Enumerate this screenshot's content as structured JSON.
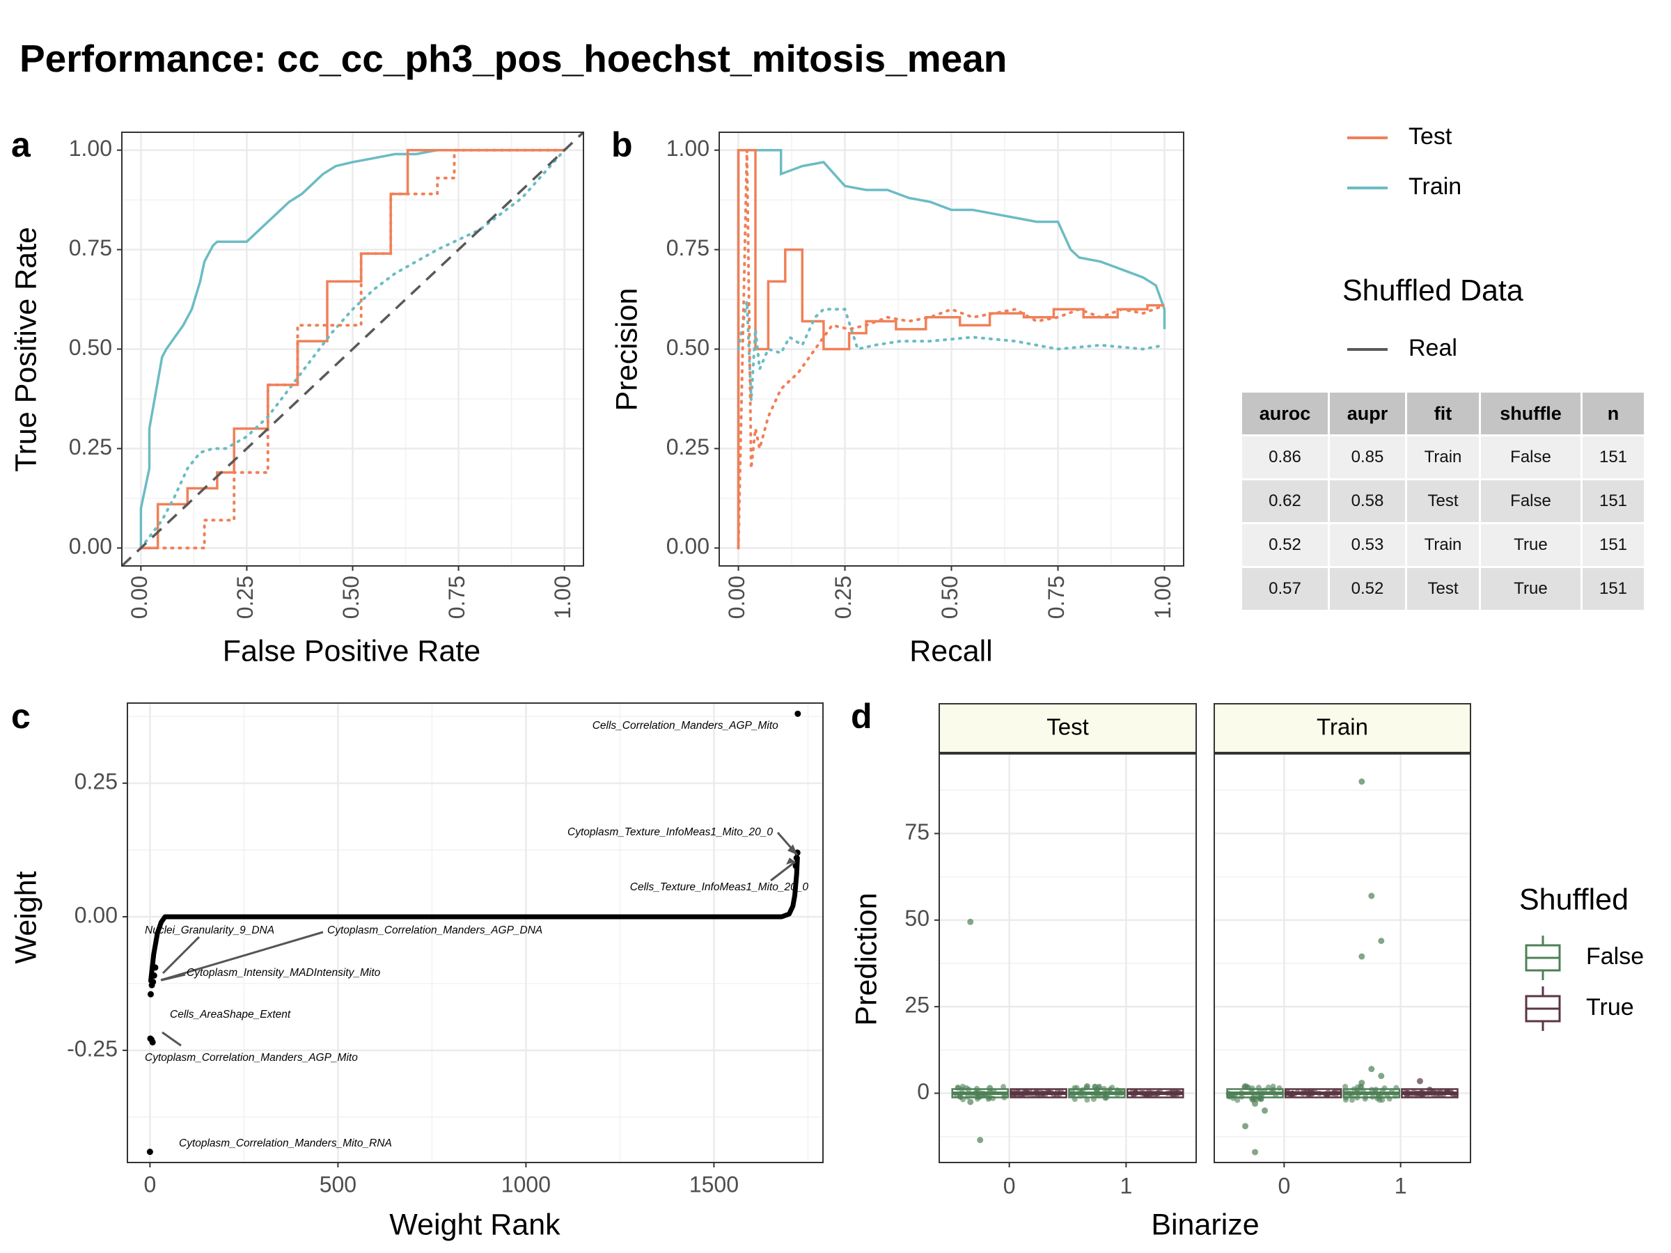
{
  "figure": {
    "title": "Performance: cc_cc_ph3_pos_hoechst_mitosis_mean",
    "panel_labels": [
      "a",
      "b",
      "c",
      "d"
    ]
  },
  "colors": {
    "test": "#f08058",
    "train": "#6bbcc4",
    "real": "#595959",
    "shuffled_false": "#4e8056",
    "shuffled_true": "#5a3643",
    "strip_fill": "#fafbea"
  },
  "legend_a": {
    "series_title": "",
    "items": [
      "Test",
      "Train"
    ],
    "shuffle_title": "Shuffled Data",
    "shuffle_items": [
      "Real"
    ]
  },
  "metrics_table": {
    "headers": [
      "auroc",
      "aupr",
      "fit",
      "shuffle",
      "n"
    ],
    "rows": [
      [
        "0.86",
        "0.85",
        "Train",
        "False",
        "151"
      ],
      [
        "0.62",
        "0.58",
        "Test",
        "False",
        "151"
      ],
      [
        "0.52",
        "0.53",
        "Train",
        "True",
        "151"
      ],
      [
        "0.57",
        "0.52",
        "Test",
        "True",
        "151"
      ]
    ]
  },
  "legend_d": {
    "title": "Shuffled",
    "items": [
      "False",
      "True"
    ]
  },
  "chart_data": [
    {
      "panel": "a",
      "type": "line",
      "xlabel": "False Positive Rate",
      "ylabel": "True Positive Rate",
      "xlim": [
        0,
        1
      ],
      "ylim": [
        0,
        1
      ],
      "xticks": [
        "0.00",
        "0.25",
        "0.50",
        "0.75",
        "1.00"
      ],
      "yticks": [
        "0.00",
        "0.25",
        "0.50",
        "0.75",
        "1.00"
      ],
      "series": [
        {
          "name": "Train",
          "shuffled": false,
          "x": [
            0,
            0,
            0.02,
            0.02,
            0.04,
            0.05,
            0.06,
            0.08,
            0.1,
            0.12,
            0.14,
            0.15,
            0.17,
            0.18,
            0.25,
            0.27,
            0.3,
            0.32,
            0.35,
            0.38,
            0.4,
            0.43,
            0.46,
            0.5,
            0.55,
            0.6,
            0.65,
            0.7,
            0.8,
            0.9,
            1.0
          ],
          "y": [
            0,
            0.1,
            0.2,
            0.3,
            0.42,
            0.48,
            0.5,
            0.53,
            0.56,
            0.6,
            0.67,
            0.72,
            0.76,
            0.77,
            0.77,
            0.79,
            0.82,
            0.84,
            0.87,
            0.89,
            0.91,
            0.94,
            0.96,
            0.97,
            0.98,
            0.99,
            0.99,
            1.0,
            1.0,
            1.0,
            1.0
          ]
        },
        {
          "name": "Test",
          "shuffled": false,
          "x": [
            0,
            0.04,
            0.04,
            0.11,
            0.11,
            0.18,
            0.18,
            0.22,
            0.22,
            0.3,
            0.3,
            0.37,
            0.37,
            0.44,
            0.44,
            0.52,
            0.52,
            0.59,
            0.59,
            0.63,
            0.63,
            1.0
          ],
          "y": [
            0,
            0,
            0.11,
            0.11,
            0.15,
            0.15,
            0.19,
            0.19,
            0.3,
            0.3,
            0.41,
            0.41,
            0.52,
            0.52,
            0.67,
            0.67,
            0.74,
            0.74,
            0.89,
            0.89,
            1.0,
            1.0
          ]
        },
        {
          "name": "Train",
          "shuffled": true,
          "x": [
            0,
            0.05,
            0.08,
            0.11,
            0.14,
            0.17,
            0.2,
            0.25,
            0.3,
            0.35,
            0.4,
            0.45,
            0.5,
            0.55,
            0.6,
            0.7,
            0.8,
            0.9,
            1.0
          ],
          "y": [
            0,
            0.07,
            0.13,
            0.2,
            0.24,
            0.25,
            0.25,
            0.28,
            0.33,
            0.4,
            0.47,
            0.54,
            0.6,
            0.65,
            0.69,
            0.75,
            0.8,
            0.88,
            1.0
          ]
        },
        {
          "name": "Test",
          "shuffled": true,
          "x": [
            0,
            0.15,
            0.15,
            0.22,
            0.22,
            0.3,
            0.3,
            0.37,
            0.37,
            0.44,
            0.44,
            0.52,
            0.52,
            0.59,
            0.59,
            0.7,
            0.7,
            0.74,
            0.74,
            1.0
          ],
          "y": [
            0,
            0,
            0.07,
            0.07,
            0.19,
            0.19,
            0.41,
            0.41,
            0.56,
            0.56,
            0.56,
            0.56,
            0.74,
            0.74,
            0.89,
            0.89,
            0.93,
            0.93,
            1.0,
            1.0
          ]
        }
      ],
      "reference_line": {
        "x": [
          0,
          1
        ],
        "y": [
          0,
          1
        ],
        "style": "dashed"
      }
    },
    {
      "panel": "b",
      "type": "line",
      "xlabel": "Recall",
      "ylabel": "Precision",
      "xlim": [
        0,
        1
      ],
      "ylim": [
        0,
        1
      ],
      "xticks": [
        "0.00",
        "0.25",
        "0.50",
        "0.75",
        "1.00"
      ],
      "yticks": [
        "0.00",
        "0.25",
        "0.50",
        "0.75",
        "1.00"
      ],
      "series": [
        {
          "name": "Train",
          "shuffled": false,
          "x": [
            0,
            0,
            0.1,
            0.1,
            0.15,
            0.2,
            0.25,
            0.3,
            0.35,
            0.4,
            0.45,
            0.5,
            0.55,
            0.6,
            0.65,
            0.7,
            0.75,
            0.78,
            0.8,
            0.85,
            0.9,
            0.95,
            0.98,
            1.0,
            1.0
          ],
          "y": [
            0,
            1.0,
            1.0,
            0.94,
            0.96,
            0.97,
            0.91,
            0.9,
            0.9,
            0.88,
            0.87,
            0.85,
            0.85,
            0.84,
            0.83,
            0.82,
            0.82,
            0.75,
            0.73,
            0.72,
            0.7,
            0.68,
            0.66,
            0.6,
            0.55
          ]
        },
        {
          "name": "Test",
          "shuffled": false,
          "x": [
            0,
            0,
            0.04,
            0.04,
            0.07,
            0.07,
            0.11,
            0.11,
            0.15,
            0.15,
            0.2,
            0.2,
            0.26,
            0.26,
            0.3,
            0.3,
            0.37,
            0.37,
            0.44,
            0.44,
            0.52,
            0.52,
            0.59,
            0.59,
            0.67,
            0.67,
            0.74,
            0.74,
            0.81,
            0.81,
            0.89,
            0.89,
            0.96,
            0.96,
            1.0
          ],
          "y": [
            0,
            1.0,
            1.0,
            0.5,
            0.5,
            0.67,
            0.67,
            0.75,
            0.75,
            0.57,
            0.57,
            0.5,
            0.5,
            0.54,
            0.54,
            0.57,
            0.57,
            0.55,
            0.55,
            0.58,
            0.58,
            0.56,
            0.56,
            0.59,
            0.59,
            0.58,
            0.58,
            0.6,
            0.6,
            0.58,
            0.58,
            0.6,
            0.6,
            0.61,
            0.61
          ]
        },
        {
          "name": "Train",
          "shuffled": true,
          "x": [
            0,
            0.02,
            0.03,
            0.04,
            0.05,
            0.07,
            0.1,
            0.12,
            0.15,
            0.18,
            0.2,
            0.25,
            0.28,
            0.32,
            0.38,
            0.45,
            0.55,
            0.65,
            0.75,
            0.85,
            0.95,
            1.0
          ],
          "y": [
            0.5,
            0.62,
            0.37,
            0.55,
            0.45,
            0.5,
            0.49,
            0.53,
            0.51,
            0.58,
            0.6,
            0.6,
            0.5,
            0.51,
            0.52,
            0.52,
            0.53,
            0.52,
            0.5,
            0.51,
            0.5,
            0.51
          ]
        },
        {
          "name": "Test",
          "shuffled": true,
          "x": [
            0,
            0.02,
            0.03,
            0.04,
            0.05,
            0.07,
            0.1,
            0.14,
            0.18,
            0.22,
            0.26,
            0.3,
            0.35,
            0.4,
            0.45,
            0.5,
            0.55,
            0.6,
            0.65,
            0.7,
            0.75,
            0.8,
            0.85,
            0.9,
            0.95,
            1.0
          ],
          "y": [
            0,
            1.0,
            0.2,
            0.3,
            0.25,
            0.33,
            0.4,
            0.44,
            0.5,
            0.56,
            0.55,
            0.56,
            0.58,
            0.57,
            0.58,
            0.6,
            0.58,
            0.59,
            0.6,
            0.57,
            0.58,
            0.6,
            0.58,
            0.6,
            0.59,
            0.61
          ]
        }
      ]
    },
    {
      "panel": "c",
      "type": "scatter",
      "xlabel": "Weight Rank",
      "ylabel": "Weight",
      "xlim": [
        -60,
        1790
      ],
      "ylim": [
        -0.46,
        0.4
      ],
      "xticks": [
        "0",
        "500",
        "1000",
        "1500"
      ],
      "yticks": [
        "-0.25",
        "0.00",
        "0.25"
      ],
      "points": [
        {
          "x": 0,
          "y": -0.44
        },
        {
          "x": 1,
          "y": -0.228
        },
        {
          "x": 4,
          "y": -0.23
        },
        {
          "x": 7,
          "y": -0.235
        },
        {
          "x": 2,
          "y": -0.145
        },
        {
          "x": 5,
          "y": -0.128
        },
        {
          "x": 8,
          "y": -0.122
        },
        {
          "x": 11,
          "y": -0.11
        },
        {
          "x": 14,
          "y": -0.095
        },
        {
          "x": 1723,
          "y": 0.38
        },
        {
          "x": 1722,
          "y": 0.12
        },
        {
          "x": 1720,
          "y": 0.11
        },
        {
          "x": 1718,
          "y": 0.095
        }
      ],
      "bulk_curve": {
        "x": [
          2,
          10,
          20,
          30,
          40,
          60,
          1680,
          1700,
          1710,
          1715,
          1720,
          1722
        ],
        "y": [
          -0.12,
          -0.07,
          -0.03,
          -0.01,
          0,
          0,
          0,
          0.005,
          0.02,
          0.04,
          0.08,
          0.11
        ]
      },
      "annotations": [
        {
          "text": "Cells_Correlation_Manders_AGP_Mito",
          "x": 1723,
          "y": 0.38
        },
        {
          "text": "Cytoplasm_Texture_InfoMeas1_Mito_20_0",
          "x": 1722,
          "y": 0.12
        },
        {
          "text": "Cells_Texture_InfoMeas1_Mito_20_0",
          "x": 1720,
          "y": 0.11
        },
        {
          "text": "Nuclei_Granularity_9_DNA",
          "x": 14,
          "y": -0.095
        },
        {
          "text": "Cytoplasm_Correlation_Manders_AGP_DNA",
          "x": 2,
          "y": -0.128
        },
        {
          "text": "Cytoplasm_Intensity_MADIntensity_Mito",
          "x": 5,
          "y": -0.122
        },
        {
          "text": "Cells_AreaShape_Extent",
          "x": 4,
          "y": -0.23
        },
        {
          "text": "Cytoplasm_Correlation_Manders_AGP_Mito",
          "x": 7,
          "y": -0.235
        },
        {
          "text": "Cytoplasm_Correlation_Manders_Mito_RNA",
          "x": 0,
          "y": -0.44
        }
      ]
    },
    {
      "panel": "d",
      "type": "scatter",
      "xlabel": "Binarize",
      "ylabel": "Prediction",
      "facets": [
        "Test",
        "Train"
      ],
      "categories": [
        "0",
        "1"
      ],
      "ylim": [
        -20,
        98
      ],
      "yticks": [
        "0",
        "25",
        "50",
        "75"
      ],
      "outliers": [
        {
          "facet": "Test",
          "x": "0",
          "shuffled": false,
          "y": [
            49.5,
            -13.5,
            1.5,
            -2.5
          ]
        },
        {
          "facet": "Test",
          "x": "1",
          "shuffled": false,
          "y": [
            2,
            1,
            -0.5
          ]
        },
        {
          "facet": "Train",
          "x": "0",
          "shuffled": false,
          "y": [
            -9.5,
            -17,
            -5,
            2,
            -3
          ]
        },
        {
          "facet": "Train",
          "x": "1",
          "shuffled": false,
          "y": [
            90,
            57,
            44,
            39.5,
            7,
            5,
            3
          ]
        },
        {
          "facet": "Train",
          "x": "1",
          "shuffled": true,
          "y": [
            3.5,
            1
          ]
        }
      ]
    }
  ]
}
